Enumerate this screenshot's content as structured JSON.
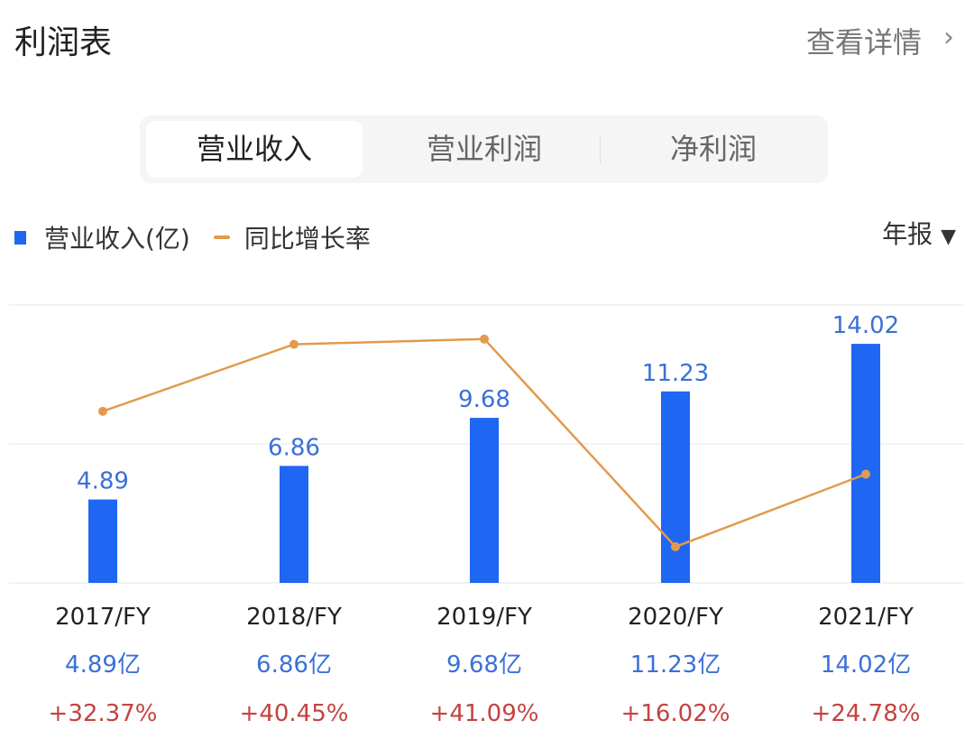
{
  "header": {
    "title": "利润表",
    "more_label": "查看详情",
    "chevron": "chevron-right-icon"
  },
  "tabs": [
    {
      "label": "营业收入",
      "active": true
    },
    {
      "label": "营业利润",
      "active": false
    },
    {
      "label": "净利润",
      "active": false
    }
  ],
  "period_select": {
    "label": "年报",
    "icon": "caret-down-icon"
  },
  "colors": {
    "bar": "#1f66f2",
    "line": "#e39a4d",
    "growth": "#c4433f",
    "value": "#3b70d8"
  },
  "chart_data": {
    "type": "bar",
    "categories": [
      "2017/FY",
      "2018/FY",
      "2019/FY",
      "2020/FY",
      "2021/FY"
    ],
    "series": [
      {
        "name": "营业收入(亿)",
        "type": "bar",
        "values": [
          4.89,
          6.86,
          9.68,
          11.23,
          14.02
        ],
        "labels": [
          "4.89",
          "6.86",
          "9.68",
          "11.23",
          "14.02"
        ],
        "table_labels": [
          "4.89亿",
          "6.86亿",
          "9.68亿",
          "11.23亿",
          "14.02亿"
        ]
      },
      {
        "name": "同比增长率",
        "type": "line",
        "values": [
          32.37,
          40.45,
          41.09,
          16.02,
          24.78
        ],
        "labels": [
          "+32.37%",
          "+40.45%",
          "+41.09%",
          "+16.02%",
          "+24.78%"
        ]
      }
    ],
    "ylim": [
      0,
      16.3
    ],
    "y2lim": [
      11.66,
      45.2
    ],
    "grid": true,
    "legend": "top-left"
  }
}
